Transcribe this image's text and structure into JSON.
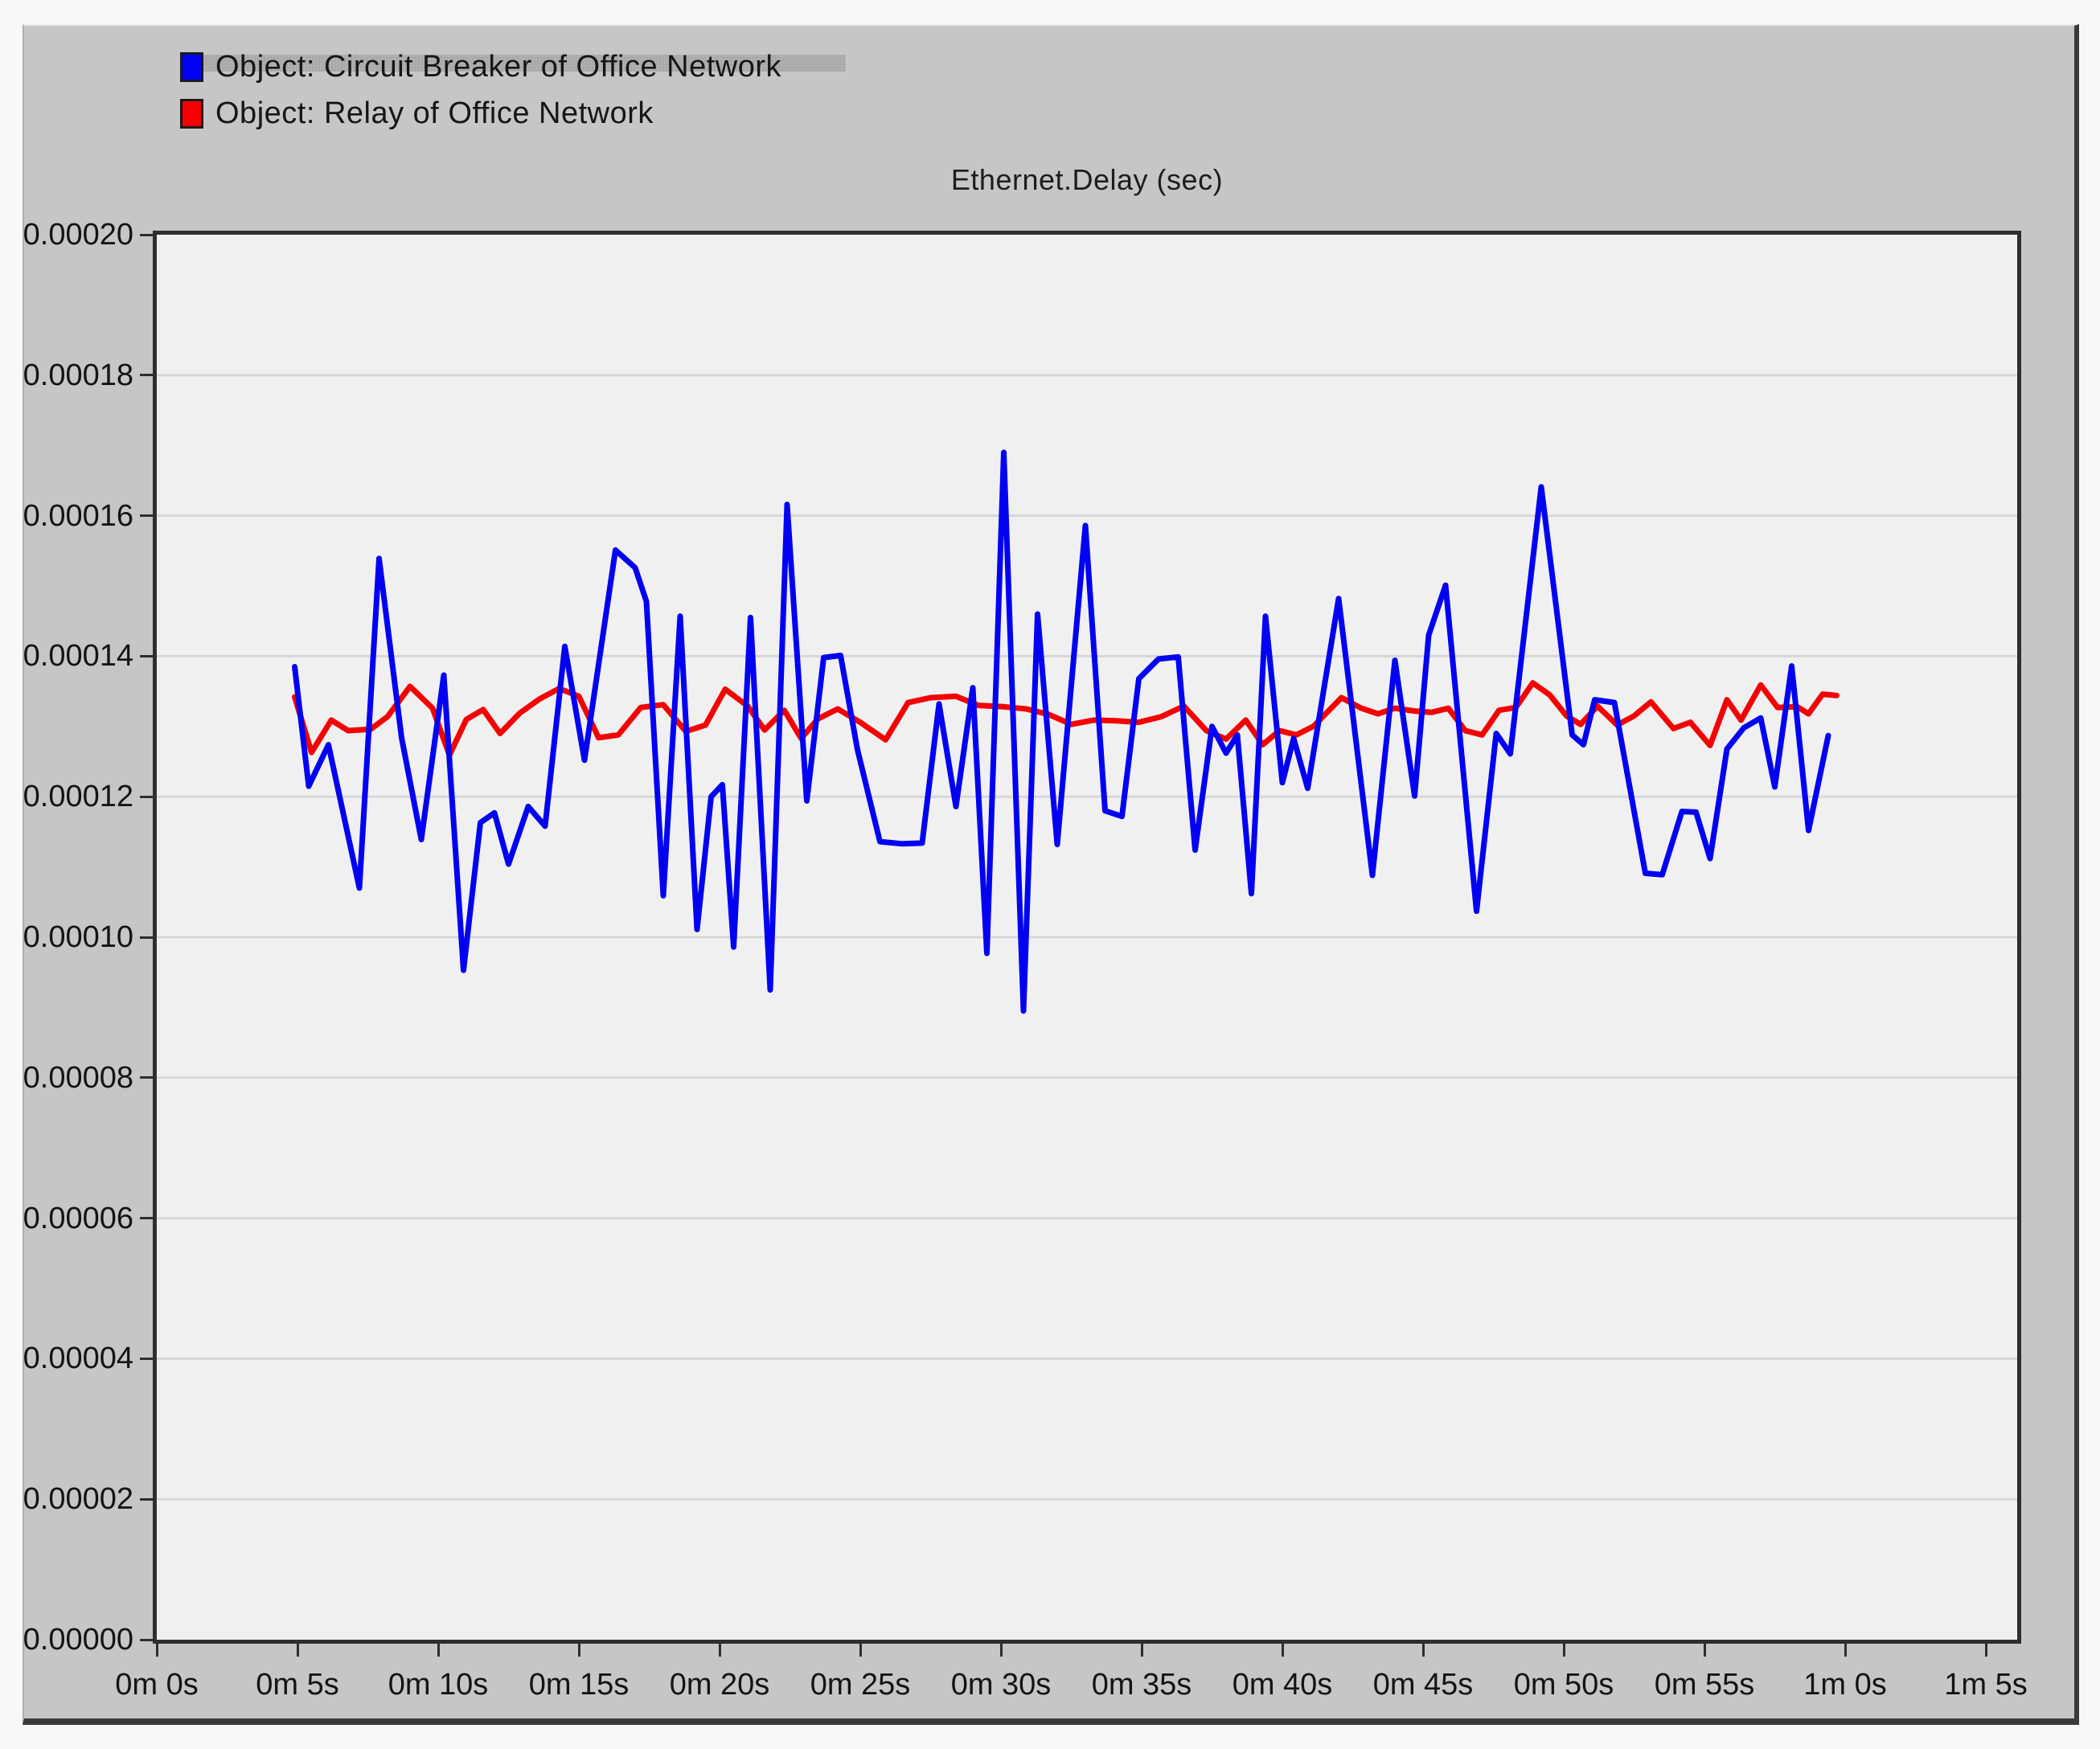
{
  "window": {
    "page_background": "#f8f8f8",
    "panel_background": "#c6c6c6",
    "plot_background": "#f0f0f0",
    "gridline_color": "#d7d7d7",
    "frame_color": "#2e2e2e",
    "text_color": "#161616"
  },
  "legend": {
    "items": [
      {
        "label": "Object: Circuit Breaker of Office Network",
        "color": "#0000f2",
        "swatch": "blue-square-icon"
      },
      {
        "label": "Object: Relay of Office Network",
        "color": "#f40000",
        "swatch": "red-square-icon"
      }
    ]
  },
  "chart_data": {
    "type": "line",
    "title": "Ethernet.Delay (sec)",
    "xlabel": "",
    "ylabel": "",
    "grid": "horizontal",
    "legend_position": "top-left",
    "x_axis": {
      "unit": "simulation time (minutes, seconds)",
      "tick_labels": [
        "0m 0s",
        "0m 5s",
        "0m 10s",
        "0m 15s",
        "0m 20s",
        "0m 25s",
        "0m 30s",
        "0m 35s",
        "0m 40s",
        "0m 45s",
        "0m 50s",
        "0m 55s",
        "1m 0s",
        "1m 5s"
      ],
      "tick_seconds": [
        0,
        5,
        10,
        15,
        20,
        25,
        30,
        35,
        40,
        45,
        50,
        55,
        60,
        65
      ],
      "domain_seconds": [
        0,
        66.1
      ]
    },
    "y_axis": {
      "unit": "seconds",
      "tick_labels": [
        "0.00020",
        "0.00018",
        "0.00016",
        "0.00014",
        "0.00012",
        "0.00010",
        "0.00008",
        "0.00006",
        "0.00004",
        "0.00002",
        "0.00000"
      ],
      "min": 0,
      "max": 0.0002,
      "tick_step": 2e-05
    },
    "value_scale_note": "series point values are delay in units of 1e-6 seconds; x is time in seconds",
    "series": [
      {
        "name": "Object: Circuit Breaker of Office Network",
        "color": "#0000f2",
        "points": [
          [
            4.9,
            138.5
          ],
          [
            5.4,
            121.5
          ],
          [
            6.1,
            127.4
          ],
          [
            7.2,
            107.0
          ],
          [
            7.9,
            153.9
          ],
          [
            8.7,
            128.4
          ],
          [
            9.4,
            113.9
          ],
          [
            10.2,
            137.3
          ],
          [
            10.9,
            95.3
          ],
          [
            11.5,
            116.3
          ],
          [
            12.0,
            117.7
          ],
          [
            12.5,
            110.4
          ],
          [
            13.2,
            118.6
          ],
          [
            13.8,
            115.8
          ],
          [
            14.5,
            141.4
          ],
          [
            15.2,
            125.2
          ],
          [
            16.3,
            155.1
          ],
          [
            17.0,
            152.6
          ],
          [
            17.4,
            147.8
          ],
          [
            18.0,
            105.9
          ],
          [
            18.6,
            145.7
          ],
          [
            19.2,
            101.1
          ],
          [
            19.7,
            120.0
          ],
          [
            20.1,
            121.7
          ],
          [
            20.5,
            98.6
          ],
          [
            21.1,
            145.5
          ],
          [
            21.8,
            92.5
          ],
          [
            22.4,
            161.6
          ],
          [
            23.1,
            119.4
          ],
          [
            23.7,
            139.8
          ],
          [
            24.3,
            140.1
          ],
          [
            24.9,
            126.7
          ],
          [
            25.7,
            113.6
          ],
          [
            26.5,
            113.3
          ],
          [
            27.2,
            113.4
          ],
          [
            27.8,
            133.2
          ],
          [
            28.4,
            118.6
          ],
          [
            29.0,
            135.5
          ],
          [
            29.5,
            97.7
          ],
          [
            30.1,
            169.0
          ],
          [
            30.8,
            89.5
          ],
          [
            31.3,
            146.0
          ],
          [
            32.0,
            113.2
          ],
          [
            33.0,
            158.6
          ],
          [
            33.7,
            118.0
          ],
          [
            34.3,
            117.2
          ],
          [
            34.9,
            136.8
          ],
          [
            35.6,
            139.6
          ],
          [
            36.3,
            139.9
          ],
          [
            36.9,
            112.4
          ],
          [
            37.5,
            130.0
          ],
          [
            38.0,
            126.2
          ],
          [
            38.4,
            128.8
          ],
          [
            38.9,
            106.2
          ],
          [
            39.4,
            145.7
          ],
          [
            40.0,
            122.0
          ],
          [
            40.4,
            128.3
          ],
          [
            40.9,
            121.2
          ],
          [
            42.0,
            148.2
          ],
          [
            43.2,
            108.8
          ],
          [
            44.0,
            139.4
          ],
          [
            44.7,
            120.1
          ],
          [
            45.2,
            143.0
          ],
          [
            45.8,
            150.1
          ],
          [
            46.9,
            103.7
          ],
          [
            47.6,
            129.0
          ],
          [
            48.1,
            126.1
          ],
          [
            49.2,
            164.1
          ],
          [
            50.3,
            128.8
          ],
          [
            50.7,
            127.4
          ],
          [
            51.1,
            133.8
          ],
          [
            51.8,
            133.4
          ],
          [
            52.9,
            109.1
          ],
          [
            53.5,
            108.9
          ],
          [
            54.2,
            117.9
          ],
          [
            54.7,
            117.8
          ],
          [
            55.2,
            111.2
          ],
          [
            55.8,
            126.8
          ],
          [
            56.4,
            129.8
          ],
          [
            57.0,
            131.2
          ],
          [
            57.5,
            121.4
          ],
          [
            58.1,
            138.6
          ],
          [
            58.7,
            115.2
          ],
          [
            59.4,
            128.7
          ]
        ]
      },
      {
        "name": "Object: Relay of Office Network",
        "color": "#f40000",
        "points": [
          [
            4.9,
            134.2
          ],
          [
            5.5,
            126.3
          ],
          [
            6.2,
            130.9
          ],
          [
            6.8,
            129.4
          ],
          [
            7.6,
            129.6
          ],
          [
            8.2,
            131.4
          ],
          [
            9.0,
            135.7
          ],
          [
            9.8,
            132.6
          ],
          [
            10.4,
            125.9
          ],
          [
            11.0,
            131.0
          ],
          [
            11.6,
            132.4
          ],
          [
            12.2,
            129.0
          ],
          [
            12.9,
            131.9
          ],
          [
            13.6,
            133.9
          ],
          [
            14.3,
            135.4
          ],
          [
            15.0,
            134.3
          ],
          [
            15.7,
            128.4
          ],
          [
            16.4,
            128.8
          ],
          [
            17.2,
            132.7
          ],
          [
            18.0,
            133.1
          ],
          [
            18.8,
            129.3
          ],
          [
            19.5,
            130.2
          ],
          [
            20.2,
            135.3
          ],
          [
            21.0,
            132.9
          ],
          [
            21.6,
            129.5
          ],
          [
            22.3,
            132.3
          ],
          [
            22.9,
            128.3
          ],
          [
            23.5,
            131.1
          ],
          [
            24.2,
            132.5
          ],
          [
            25.0,
            130.6
          ],
          [
            25.9,
            128.1
          ],
          [
            26.7,
            133.4
          ],
          [
            27.5,
            134.1
          ],
          [
            28.4,
            134.3
          ],
          [
            29.2,
            133.0
          ],
          [
            30.1,
            132.8
          ],
          [
            30.9,
            132.5
          ],
          [
            31.7,
            131.7
          ],
          [
            32.5,
            130.3
          ],
          [
            33.3,
            130.9
          ],
          [
            34.1,
            130.8
          ],
          [
            34.9,
            130.6
          ],
          [
            35.7,
            131.4
          ],
          [
            36.5,
            132.9
          ],
          [
            37.3,
            129.4
          ],
          [
            38.0,
            128.2
          ],
          [
            38.7,
            130.9
          ],
          [
            39.3,
            127.4
          ],
          [
            39.9,
            129.4
          ],
          [
            40.5,
            128.8
          ],
          [
            41.1,
            130.0
          ],
          [
            42.1,
            134.1
          ],
          [
            42.8,
            132.6
          ],
          [
            43.4,
            131.8
          ],
          [
            44.0,
            132.6
          ],
          [
            44.7,
            132.2
          ],
          [
            45.3,
            132.0
          ],
          [
            45.9,
            132.6
          ],
          [
            46.5,
            129.4
          ],
          [
            47.1,
            128.8
          ],
          [
            47.7,
            132.3
          ],
          [
            48.3,
            132.7
          ],
          [
            48.9,
            136.2
          ],
          [
            49.5,
            134.5
          ],
          [
            50.1,
            131.5
          ],
          [
            50.6,
            130.3
          ],
          [
            51.2,
            132.9
          ],
          [
            51.9,
            130.2
          ],
          [
            52.5,
            131.5
          ],
          [
            53.1,
            133.5
          ],
          [
            53.9,
            129.7
          ],
          [
            54.5,
            130.6
          ],
          [
            55.2,
            127.3
          ],
          [
            55.8,
            133.8
          ],
          [
            56.3,
            130.9
          ],
          [
            57.0,
            135.9
          ],
          [
            57.6,
            132.7
          ],
          [
            58.3,
            132.8
          ],
          [
            58.7,
            131.8
          ],
          [
            59.2,
            134.6
          ],
          [
            59.7,
            134.4
          ]
        ]
      }
    ]
  }
}
